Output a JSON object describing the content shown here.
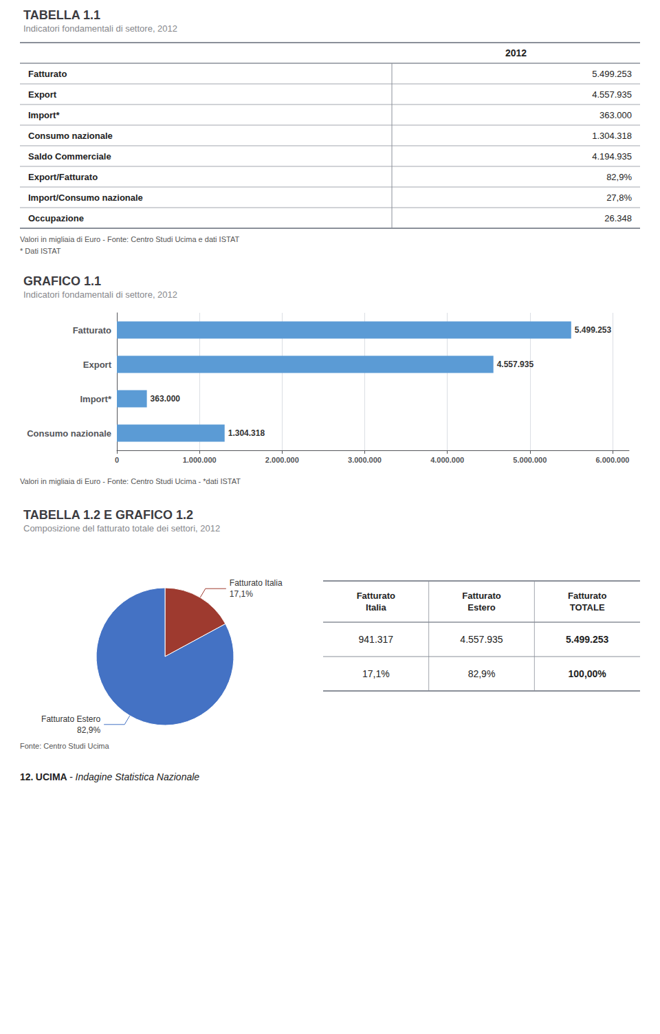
{
  "chart_data": [
    {
      "type": "table",
      "title": "TABELLA 1.1",
      "subtitle": "Indicatori fondamentali di settore, 2012",
      "header": "2012",
      "rows": [
        [
          "Fatturato",
          "5.499.253"
        ],
        [
          "Export",
          "4.557.935"
        ],
        [
          "Import*",
          "363.000"
        ],
        [
          "Consumo nazionale",
          "1.304.318"
        ],
        [
          "Saldo Commerciale",
          "4.194.935"
        ],
        [
          "Export/Fatturato",
          "82,9%"
        ],
        [
          "Import/Consumo nazionale",
          "27,8%"
        ],
        [
          "Occupazione",
          "26.348"
        ]
      ],
      "notes": [
        "Valori in migliaia di Euro - Fonte: Centro Studi Ucima e dati ISTAT",
        "* Dati ISTAT"
      ]
    },
    {
      "type": "bar",
      "title": "GRAFICO 1.1",
      "subtitle": "Indicatori fondamentali di settore, 2012",
      "orientation": "horizontal",
      "categories": [
        "Fatturato",
        "Export",
        "Import*",
        "Consumo nazionale"
      ],
      "values": [
        5499253,
        4557935,
        363000,
        1304318
      ],
      "value_labels": [
        "5.499.253",
        "4.557.935",
        "363.000",
        "1.304.318"
      ],
      "color": "#5B9BD5",
      "xlim": [
        0,
        6200000
      ],
      "xticks": [
        0,
        {
          "value": 1000000,
          "label": "1.000.000"
        },
        {
          "value": 2000000,
          "label": "2.000.000"
        },
        {
          "value": 3000000,
          "label": "3.000.000"
        },
        {
          "value": 4000000,
          "label": "4.000.000"
        },
        {
          "value": 5000000,
          "label": "5.000.000"
        },
        {
          "value": 6000000,
          "label": "6.000.000"
        }
      ],
      "grid": true,
      "data_labels": true,
      "note": "Valori in migliaia di Euro - Fonte: Centro Studi Ucima - *dati ISTAT"
    },
    {
      "type": "pie",
      "title": "TABELLA 1.2 E GRAFICO 1.2",
      "subtitle": "Composizione del fatturato totale dei settori, 2012",
      "categories": [
        "Fatturato Italia",
        "Fatturato Estero"
      ],
      "values": [
        17.1,
        82.9
      ],
      "value_labels": [
        "17,1%",
        "82,9%"
      ],
      "colors": [
        "#9E3A2F",
        "#4472C4"
      ],
      "data_labels": true
    },
    {
      "type": "table",
      "columns": [
        "Fatturato\nItalia",
        "Fatturato\nEstero",
        "Fatturato\nTOTALE"
      ],
      "rows": [
        [
          "941.317",
          "4.557.935",
          "5.499.253"
        ],
        [
          "17,1%",
          "82,9%",
          "100,00%"
        ]
      ],
      "note": "Fonte: Centro Studi Ucima"
    }
  ],
  "footer": [
    "12.",
    "UCIMA",
    "- Indagine Statistica Nazionale"
  ]
}
